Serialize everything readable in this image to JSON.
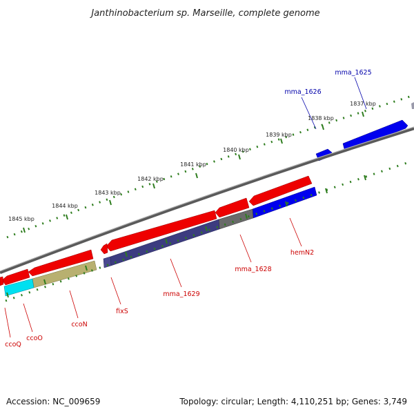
{
  "title": "Janthinobacterium sp. Marseille, complete genome",
  "footer": {
    "accession": "Accession: NC_009659",
    "summary": "Topology: circular; Length: 4,110,251 bp; Genes: 3,749"
  },
  "colors": {
    "backbone": "#7a7a7a",
    "tick": "#2e7d1e",
    "forward_label": "#0000aa",
    "reverse_label": "#cc0000"
  },
  "ticks": [
    {
      "label": "1837 kbp"
    },
    {
      "label": "1838 kbp"
    },
    {
      "label": "1839 kbp"
    },
    {
      "label": "1840 kbp"
    },
    {
      "label": "1841 kbp"
    },
    {
      "label": "1842 kbp"
    },
    {
      "label": "1843 kbp"
    },
    {
      "label": "1844 kbp"
    },
    {
      "label": "1845 kbp"
    }
  ],
  "labels": {
    "mma_1625": "mma_1625",
    "mma_1626": "mma_1626",
    "hemN2": "hemN2",
    "mma_1628": "mma_1628",
    "mma_1629": "mma_1629",
    "fixS": "fixS",
    "ccoN": "ccoN",
    "ccoO": "ccoO",
    "ccoQ": "ccoQ"
  }
}
